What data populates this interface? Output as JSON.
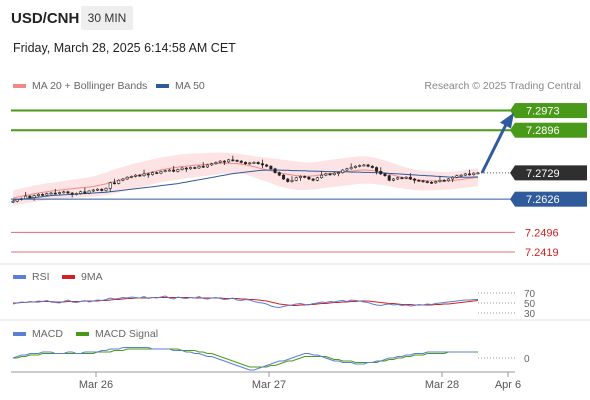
{
  "header": {
    "symbol": "USD/CNH",
    "timeframe": "30 MIN",
    "datetime": "Friday, March 28, 2025 6:14:58 AM CET"
  },
  "legend_main": [
    {
      "label": "MA 20 + Bollinger Bands",
      "color": "#f08a8a"
    },
    {
      "label": "MA 50",
      "color": "#2f5a9c"
    }
  ],
  "credit": "Research © 2025 Trading Central",
  "legend_rsi": [
    {
      "label": "RSI",
      "color": "#5a7fd4"
    },
    {
      "label": "9MA",
      "color": "#d42020"
    }
  ],
  "legend_macd": [
    {
      "label": "MACD",
      "color": "#5a7fd4"
    },
    {
      "label": "MACD Signal",
      "color": "#4a9a1a"
    }
  ],
  "colors": {
    "resistance": "#4a9a1a",
    "pivot": "#2f5a9c",
    "support": "#e07070",
    "current": "#2f2f2f",
    "candle": "#222222",
    "band": "#fde3e3",
    "arrow": "#2f5a9c"
  },
  "chart_data": [
    {
      "type": "candlestick",
      "ylim": [
        7.238,
        7.303
      ],
      "x_ticks": [
        "Mar 26",
        "Mar 27",
        "Mar 28",
        "Apr 6"
      ],
      "levels": [
        {
          "label": "7.2973",
          "value": 7.2973,
          "kind": "resistance"
        },
        {
          "label": "7.2896",
          "value": 7.2896,
          "kind": "resistance"
        },
        {
          "label": "7.2729",
          "value": 7.2729,
          "kind": "current"
        },
        {
          "label": "7.2626",
          "value": 7.2626,
          "kind": "pivot"
        },
        {
          "label": "7.2496",
          "value": 7.2496,
          "kind": "support"
        },
        {
          "label": "7.2419",
          "value": 7.2419,
          "kind": "support"
        }
      ],
      "close": [
        7.2618,
        7.2625,
        7.2628,
        7.2638,
        7.2632,
        7.264,
        7.2645,
        7.2642,
        7.2648,
        7.265,
        7.2648,
        7.2652,
        7.2655,
        7.265,
        7.2645,
        7.2648,
        7.2655,
        7.265,
        7.2658,
        7.2662,
        7.2665,
        7.266,
        7.2668,
        7.269,
        7.2688,
        7.27,
        7.2705,
        7.2712,
        7.2715,
        7.272,
        7.2718,
        7.2725,
        7.2722,
        7.273,
        7.2728,
        7.2735,
        7.2738,
        7.274,
        7.2735,
        7.2742,
        7.2748,
        7.2745,
        7.275,
        7.2748,
        7.2755,
        7.2752,
        7.276,
        7.2765,
        7.277,
        7.2775,
        7.2772,
        7.278,
        7.2778,
        7.2775,
        7.277,
        7.2765,
        7.2768,
        7.277,
        7.2765,
        7.276,
        7.2755,
        7.2745,
        7.273,
        7.272,
        7.2705,
        7.2695,
        7.27,
        7.271,
        7.2715,
        7.2712,
        7.2705,
        7.27,
        7.271,
        7.272,
        7.2725,
        7.2722,
        7.2728,
        7.273,
        7.274,
        7.2745,
        7.275,
        7.2755,
        7.2758,
        7.276,
        7.2755,
        7.275,
        7.2735,
        7.2725,
        7.2718,
        7.27,
        7.2705,
        7.271,
        7.2708,
        7.2712,
        7.2705,
        7.27,
        7.2698,
        7.2695,
        7.2692,
        7.269,
        7.2695,
        7.27,
        7.2698,
        7.2705,
        7.2712,
        7.2718,
        7.272,
        7.2725,
        7.2722,
        7.2728,
        7.2729
      ],
      "band_upper": [
        7.266,
        7.2665,
        7.2668,
        7.2672,
        7.2675,
        7.268,
        7.2682,
        7.2685,
        7.2688,
        7.269,
        7.2692,
        7.2695,
        7.2697,
        7.27,
        7.2702,
        7.2705,
        7.2707,
        7.271,
        7.2712,
        7.2715,
        7.272,
        7.2725,
        7.273,
        7.2738,
        7.2742,
        7.2748,
        7.2752,
        7.2757,
        7.2762,
        7.2767,
        7.277,
        7.2775,
        7.2778,
        7.2782,
        7.2785,
        7.279,
        7.2792,
        7.2795,
        7.2797,
        7.28,
        7.2802,
        7.2803,
        7.2805,
        7.2805,
        7.2806,
        7.2806,
        7.2807,
        7.2808,
        7.2808,
        7.2809,
        7.2808,
        7.2808,
        7.2806,
        7.2805,
        7.2802,
        7.28,
        7.2797,
        7.2795,
        7.2792,
        7.279,
        7.2788,
        7.2786,
        7.2785,
        7.2782,
        7.278,
        7.2778,
        7.2776,
        7.2774,
        7.2772,
        7.277,
        7.277,
        7.277,
        7.2772,
        7.2775,
        7.2778,
        7.278,
        7.2782,
        7.2784,
        7.2786,
        7.2788,
        7.279,
        7.2792,
        7.2794,
        7.2794,
        7.2793,
        7.279,
        7.2786,
        7.2782,
        7.2778,
        7.2772,
        7.2766,
        7.276,
        7.2755,
        7.275,
        7.2746,
        7.2742,
        7.274,
        7.2738,
        7.2736,
        7.2735,
        7.2734,
        7.2733,
        7.2732,
        7.2732,
        7.2733,
        7.2735,
        7.2737,
        7.274,
        7.2742,
        7.2745,
        7.2747
      ],
      "band_lower": [
        7.26,
        7.2603,
        7.2606,
        7.261,
        7.2612,
        7.2615,
        7.2618,
        7.262,
        7.2622,
        7.2625,
        7.2627,
        7.2628,
        7.263,
        7.263,
        7.2631,
        7.2632,
        7.2633,
        7.2634,
        7.2635,
        7.2636,
        7.2638,
        7.264,
        7.2642,
        7.2645,
        7.2648,
        7.2652,
        7.2656,
        7.266,
        7.2664,
        7.2668,
        7.2672,
        7.2676,
        7.268,
        7.2684,
        7.2688,
        7.2692,
        7.2695,
        7.2698,
        7.27,
        7.2703,
        7.2706,
        7.2708,
        7.271,
        7.2712,
        7.2714,
        7.2716,
        7.2718,
        7.272,
        7.2722,
        7.2724,
        7.2725,
        7.2726,
        7.2726,
        7.2726,
        7.2725,
        7.2722,
        7.2718,
        7.2712,
        7.2706,
        7.27,
        7.2694,
        7.2688,
        7.2682,
        7.2677,
        7.2672,
        7.2668,
        7.2665,
        7.2663,
        7.2662,
        7.2662,
        7.2663,
        7.2664,
        7.2666,
        7.2668,
        7.267,
        7.2672,
        7.2674,
        7.2676,
        7.2678,
        7.268,
        7.2682,
        7.2684,
        7.2686,
        7.2687,
        7.2687,
        7.2686,
        7.2684,
        7.2682,
        7.268,
        7.2677,
        7.2674,
        7.2671,
        7.2668,
        7.2666,
        7.2664,
        7.2662,
        7.2661,
        7.266,
        7.266,
        7.266,
        7.2661,
        7.2662,
        7.2663,
        7.2664,
        7.2665,
        7.2667,
        7.2669,
        7.2671,
        7.2673,
        7.2675,
        7.2677
      ],
      "ma50": [
        7.2622,
        7.2624,
        7.2626,
        7.2628,
        7.263,
        7.2632,
        7.2634,
        7.2636,
        7.2638,
        7.264,
        7.2641,
        7.2642,
        7.2643,
        7.2644,
        7.2645,
        7.2646,
        7.2647,
        7.2648,
        7.2649,
        7.265,
        7.2651,
        7.2652,
        7.2653,
        7.2655,
        7.2657,
        7.2659,
        7.2661,
        7.2663,
        7.2665,
        7.2667,
        7.2669,
        7.2671,
        7.2673,
        7.2675,
        7.2677,
        7.2679,
        7.2681,
        7.2683,
        7.2685,
        7.2687,
        7.269,
        7.2693,
        7.2696,
        7.2699,
        7.2702,
        7.2705,
        7.2708,
        7.2711,
        7.2714,
        7.2717,
        7.272,
        7.2723,
        7.2726,
        7.2728,
        7.273,
        7.2732,
        7.2734,
        7.2736,
        7.2738,
        7.2739,
        7.274,
        7.274,
        7.274,
        7.274,
        7.2739,
        7.2739,
        7.2738,
        7.2738,
        7.2737,
        7.2737,
        7.2736,
        7.2736,
        7.2735,
        7.2735,
        7.2734,
        7.2734,
        7.2734,
        7.2733,
        7.2733,
        7.2733,
        7.2732,
        7.2732,
        7.2732,
        7.2731,
        7.2731,
        7.273,
        7.273,
        7.2729,
        7.2728,
        7.2727,
        7.2726,
        7.2725,
        7.2724,
        7.2723,
        7.2722,
        7.2721,
        7.272,
        7.2719,
        7.2718,
        7.2717,
        7.2716,
        7.2715,
        7.2714,
        7.2713,
        7.2712,
        7.2712,
        7.2712,
        7.2712,
        7.2712,
        7.2713,
        7.2713
      ],
      "forecast_target": 7.2973
    },
    {
      "type": "line",
      "name": "RSI",
      "ylim": [
        20,
        80
      ],
      "y_ticks": [
        "70",
        "50",
        "30"
      ],
      "rsi": [
        48,
        50,
        52,
        51,
        53,
        52,
        54,
        53,
        55,
        52,
        51,
        50,
        53,
        56,
        52,
        51,
        53,
        55,
        52,
        54,
        56,
        55,
        57,
        60,
        58,
        59,
        61,
        60,
        62,
        61,
        60,
        63,
        59,
        61,
        60,
        62,
        64,
        60,
        58,
        62,
        60,
        59,
        61,
        60,
        63,
        59,
        58,
        60,
        61,
        59,
        57,
        58,
        60,
        56,
        55,
        57,
        56,
        53,
        51,
        50,
        48,
        44,
        42,
        41,
        43,
        45,
        46,
        48,
        49,
        47,
        46,
        49,
        50,
        52,
        51,
        53,
        52,
        54,
        55,
        53,
        56,
        55,
        54,
        52,
        51,
        48,
        46,
        45,
        47,
        48,
        46,
        47,
        45,
        46,
        44,
        45,
        47,
        46,
        48,
        47,
        49,
        50,
        51,
        52,
        53,
        54,
        55,
        56,
        56,
        57,
        57
      ],
      "ma9": [
        50,
        50,
        51,
        51,
        52,
        52,
        52,
        53,
        53,
        53,
        52,
        52,
        52,
        53,
        53,
        53,
        53,
        54,
        54,
        54,
        54,
        55,
        55,
        56,
        57,
        57,
        58,
        59,
        59,
        60,
        60,
        60,
        60,
        61,
        61,
        61,
        61,
        61,
        61,
        61,
        61,
        61,
        61,
        60,
        60,
        60,
        60,
        60,
        60,
        60,
        59,
        59,
        59,
        59,
        58,
        58,
        57,
        57,
        56,
        55,
        54,
        52,
        50,
        48,
        47,
        46,
        45,
        45,
        46,
        46,
        47,
        47,
        48,
        49,
        49,
        50,
        51,
        51,
        52,
        52,
        53,
        53,
        54,
        54,
        54,
        53,
        52,
        51,
        50,
        49,
        49,
        48,
        47,
        47,
        47,
        46,
        46,
        46,
        46,
        46,
        47,
        47,
        48,
        48,
        49,
        50,
        51,
        52,
        53,
        54,
        55
      ]
    },
    {
      "type": "line",
      "name": "MACD",
      "ylim": [
        -0.0012,
        0.0012
      ],
      "y_ticks": [
        "0"
      ],
      "macd": [
        0.0,
        0.0001,
        0.0002,
        0.0002,
        0.0003,
        0.0003,
        0.0003,
        0.0004,
        0.0004,
        0.0004,
        0.0003,
        0.0003,
        0.0003,
        0.0004,
        0.0004,
        0.0003,
        0.0003,
        0.0004,
        0.0004,
        0.0004,
        0.0004,
        0.0005,
        0.0005,
        0.0006,
        0.0006,
        0.0006,
        0.0007,
        0.0007,
        0.0007,
        0.0007,
        0.0007,
        0.0007,
        0.0007,
        0.0006,
        0.0006,
        0.0006,
        0.0006,
        0.0006,
        0.0005,
        0.0005,
        0.0005,
        0.0004,
        0.0004,
        0.0003,
        0.0003,
        0.0002,
        0.0001,
        0.0001,
        0.0,
        -0.0001,
        -0.0002,
        -0.0003,
        -0.0004,
        -0.0005,
        -0.0006,
        -0.0007,
        -0.0008,
        -0.0008,
        -0.0007,
        -0.0006,
        -0.0005,
        -0.0004,
        -0.0003,
        -0.0002,
        -0.0002,
        -0.0001,
        0.0,
        0.0001,
        0.0002,
        0.0003,
        0.0003,
        0.0002,
        0.0002,
        0.0001,
        0.0,
        -0.0001,
        -0.0002,
        -0.0002,
        -0.0003,
        -0.0003,
        -0.0003,
        -0.0004,
        -0.0004,
        -0.0004,
        -0.0003,
        -0.0003,
        -0.0002,
        -0.0002,
        -0.0001,
        0.0,
        0.0,
        0.0001,
        0.0001,
        0.0002,
        0.0002,
        0.0003,
        0.0003,
        0.0003,
        0.0004,
        0.0004,
        0.0004,
        0.0004,
        0.0004,
        0.0004,
        0.0004,
        0.0004,
        0.0004,
        0.0004,
        0.0004,
        0.0004
      ],
      "signal": [
        0.0,
        0.0,
        0.0001,
        0.0001,
        0.0002,
        0.0002,
        0.0002,
        0.0003,
        0.0003,
        0.0003,
        0.0003,
        0.0003,
        0.0003,
        0.0003,
        0.0003,
        0.0003,
        0.0003,
        0.0003,
        0.0003,
        0.0003,
        0.0004,
        0.0004,
        0.0004,
        0.0004,
        0.0005,
        0.0005,
        0.0005,
        0.0006,
        0.0006,
        0.0006,
        0.0006,
        0.0006,
        0.0006,
        0.0006,
        0.0006,
        0.0006,
        0.0006,
        0.0006,
        0.0006,
        0.0006,
        0.0005,
        0.0005,
        0.0005,
        0.0005,
        0.0004,
        0.0004,
        0.0003,
        0.0003,
        0.0002,
        0.0001,
        0.0,
        -0.0001,
        -0.0002,
        -0.0003,
        -0.0004,
        -0.0005,
        -0.0006,
        -0.0006,
        -0.0006,
        -0.0006,
        -0.0006,
        -0.0005,
        -0.0005,
        -0.0004,
        -0.0003,
        -0.0002,
        -0.0002,
        -0.0001,
        0.0,
        0.0001,
        0.0001,
        0.0001,
        0.0001,
        0.0001,
        0.0001,
        0.0,
        -0.0001,
        -0.0001,
        -0.0002,
        -0.0002,
        -0.0002,
        -0.0003,
        -0.0003,
        -0.0003,
        -0.0003,
        -0.0003,
        -0.0003,
        -0.0002,
        -0.0002,
        -0.0001,
        -0.0001,
        0.0,
        0.0,
        0.0001,
        0.0001,
        0.0002,
        0.0002,
        0.0002,
        0.0003,
        0.0003,
        0.0003,
        0.0003,
        0.0003,
        0.0004,
        0.0004,
        0.0004,
        0.0004,
        0.0004,
        0.0004,
        0.0004,
        0.0004
      ]
    }
  ]
}
